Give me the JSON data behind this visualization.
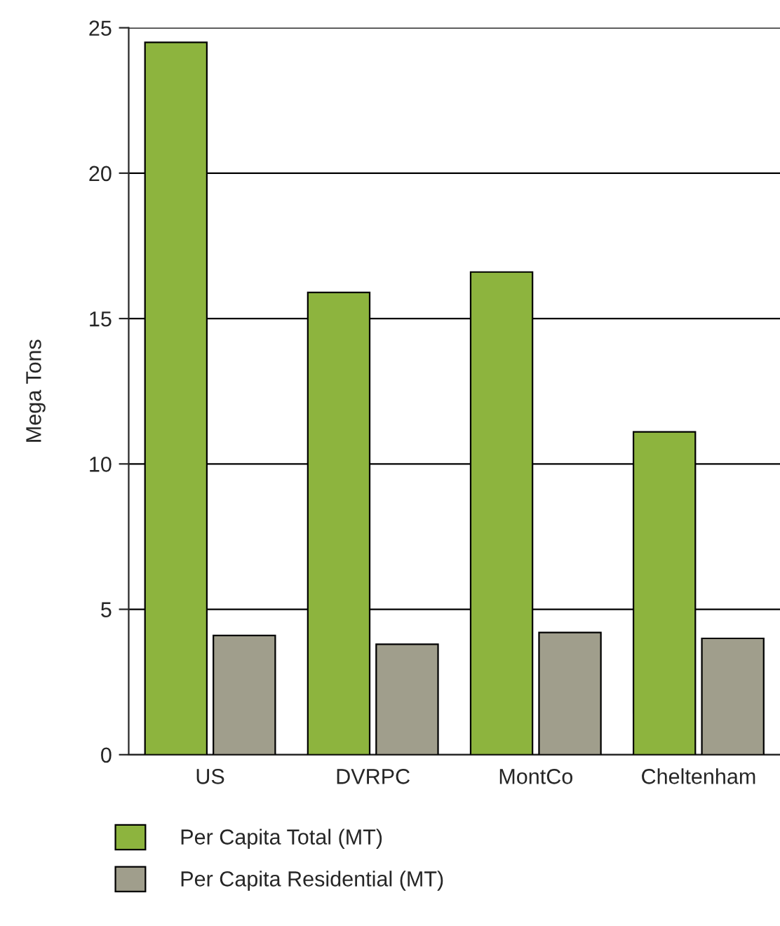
{
  "chart_data": {
    "type": "bar",
    "ylabel": "Mega Tons",
    "categories": [
      "US",
      "DVRPC",
      "MontCo",
      "Cheltenham"
    ],
    "series": [
      {
        "name": "Per Capita Total (MT)",
        "color": "#8db43e",
        "values": [
          24.5,
          15.9,
          16.6,
          11.1
        ]
      },
      {
        "name": "Per Capita Residential (MT)",
        "color": "#a09e8c",
        "values": [
          4.1,
          3.8,
          4.2,
          4.0
        ]
      }
    ],
    "ylim": [
      0,
      25
    ],
    "yticks": [
      0,
      5,
      10,
      15,
      20,
      25
    ],
    "grid": "y",
    "legend": "bottom"
  }
}
